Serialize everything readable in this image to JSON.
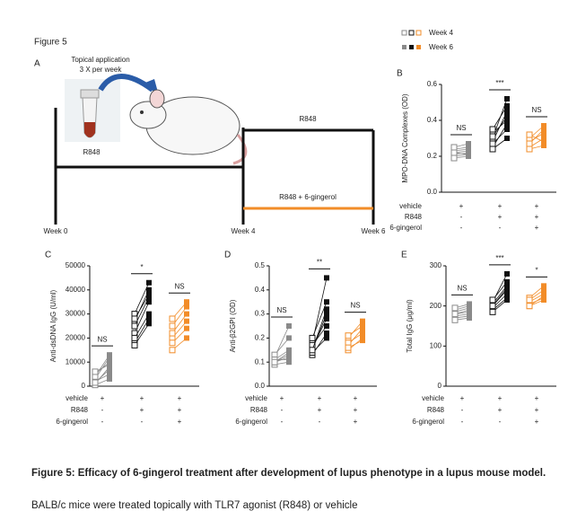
{
  "figure_label": "Figure 5",
  "panel_a": {
    "letter": "A",
    "application": "Topical application",
    "frequency": "3 X per week",
    "tube_label": "R848",
    "arm_1": "R848",
    "arm_2": "R848 + 6-gingerol",
    "week_start": "Week 0",
    "week_mid": "Week 4",
    "week_end": "Week 6"
  },
  "legend": {
    "week4": "Week 4",
    "week6": "Week 6"
  },
  "chart_data": [
    {
      "type": "paired-dot",
      "letter": "B",
      "ylabel": "MPO-DNA Complexes (OD)",
      "ylim": [
        0,
        0.6
      ],
      "yticks": [
        {
          "value": 0,
          "label": "0.0"
        },
        0.2,
        0.4,
        0.6
      ],
      "condition_labels": [
        "vehicle",
        "R848",
        "6-gingerol"
      ],
      "groups": [
        {
          "color": "#8a8a8a",
          "conditions": [
            "+",
            "-",
            "-"
          ],
          "significance": "NS",
          "week4": [
            0.22,
            0.2,
            0.24,
            0.21,
            0.23,
            0.25,
            0.19,
            0.22
          ],
          "week6": [
            0.23,
            0.21,
            0.25,
            0.22,
            0.24,
            0.27,
            0.2,
            0.21
          ]
        },
        {
          "color": "#111111",
          "conditions": [
            "+",
            "+",
            "-"
          ],
          "significance": "***",
          "week4": [
            0.25,
            0.28,
            0.3,
            0.33,
            0.24,
            0.35,
            0.27,
            0.31
          ],
          "week6": [
            0.38,
            0.45,
            0.52,
            0.4,
            0.3,
            0.48,
            0.35,
            0.42
          ]
        },
        {
          "color": "#f28c28",
          "conditions": [
            "+",
            "+",
            "+"
          ],
          "significance": "NS",
          "week4": [
            0.25,
            0.28,
            0.3,
            0.32,
            0.27,
            0.24
          ],
          "week6": [
            0.3,
            0.33,
            0.37,
            0.28,
            0.35,
            0.26
          ]
        }
      ]
    },
    {
      "type": "paired-dot",
      "letter": "C",
      "ylabel": "Anti-dsDNA IgG (U/ml)",
      "ylim": [
        0,
        50000
      ],
      "yticks": [
        0,
        10000,
        20000,
        30000,
        40000,
        50000
      ],
      "condition_labels": [
        "vehicle",
        "R848",
        "6-gingerol"
      ],
      "groups": [
        {
          "color": "#8a8a8a",
          "conditions": [
            "+",
            "-",
            "-"
          ],
          "significance": "NS",
          "week4": [
            1000,
            3000,
            5000,
            2000,
            500,
            4000,
            1500,
            6000
          ],
          "week6": [
            8000,
            12000,
            10000,
            5000,
            3000,
            13000,
            7000,
            9000
          ]
        },
        {
          "color": "#111111",
          "conditions": [
            "+",
            "+",
            "-"
          ],
          "significance": "*",
          "week4": [
            18000,
            22000,
            27000,
            30000,
            20000,
            25000,
            17000,
            28000
          ],
          "week6": [
            28000,
            35000,
            40000,
            43000,
            30000,
            37000,
            26000,
            38000
          ]
        },
        {
          "color": "#f28c28",
          "conditions": [
            "+",
            "+",
            "+"
          ],
          "significance": "NS",
          "week4": [
            15000,
            20000,
            25000,
            28000,
            18000,
            22000
          ],
          "week6": [
            20000,
            27000,
            33000,
            35000,
            24000,
            30000
          ]
        }
      ]
    },
    {
      "type": "paired-dot",
      "letter": "D",
      "ylabel": "Anti-β2GPI (OD)",
      "ylim": [
        0,
        0.5
      ],
      "yticks": [
        {
          "value": 0,
          "label": "0.0"
        },
        0.1,
        0.2,
        0.3,
        0.4,
        0.5
      ],
      "condition_labels": [
        "vehicle",
        "R848",
        "6-gingerol"
      ],
      "groups": [
        {
          "color": "#8a8a8a",
          "conditions": [
            "+",
            "-",
            "-"
          ],
          "significance": "NS",
          "week4": [
            0.1,
            0.11,
            0.12,
            0.09,
            0.1,
            0.13,
            0.11,
            0.1
          ],
          "week6": [
            0.12,
            0.15,
            0.25,
            0.1,
            0.13,
            0.2,
            0.11,
            0.14
          ]
        },
        {
          "color": "#111111",
          "conditions": [
            "+",
            "+",
            "-"
          ],
          "significance": "**",
          "week4": [
            0.13,
            0.15,
            0.18,
            0.16,
            0.14,
            0.2,
            0.17,
            0.15
          ],
          "week6": [
            0.22,
            0.3,
            0.45,
            0.28,
            0.2,
            0.35,
            0.25,
            0.32
          ]
        },
        {
          "color": "#f28c28",
          "conditions": [
            "+",
            "+",
            "+"
          ],
          "significance": "NS",
          "week4": [
            0.15,
            0.17,
            0.2,
            0.18,
            0.16,
            0.21
          ],
          "week6": [
            0.2,
            0.24,
            0.27,
            0.22,
            0.19,
            0.25
          ]
        }
      ]
    },
    {
      "type": "paired-dot",
      "letter": "E",
      "ylabel": "Total IgG (μg/ml)",
      "ylim": [
        0,
        300
      ],
      "yticks": [
        0,
        100,
        200,
        300
      ],
      "condition_labels": [
        "vehicle",
        "R848",
        "6-gingerol"
      ],
      "groups": [
        {
          "color": "#8a8a8a",
          "conditions": [
            "+",
            "-",
            "-"
          ],
          "significance": "NS",
          "week4": [
            170,
            180,
            190,
            175,
            185,
            165,
            195,
            180
          ],
          "week6": [
            175,
            190,
            200,
            180,
            195,
            170,
            205,
            185
          ]
        },
        {
          "color": "#111111",
          "conditions": [
            "+",
            "+",
            "-"
          ],
          "significance": "***",
          "week4": [
            190,
            200,
            210,
            195,
            205,
            215,
            185,
            200
          ],
          "week6": [
            220,
            240,
            280,
            230,
            250,
            260,
            215,
            245
          ]
        },
        {
          "color": "#f28c28",
          "conditions": [
            "+",
            "+",
            "+"
          ],
          "significance": "*",
          "week4": [
            200,
            210,
            220,
            205,
            215,
            200
          ],
          "week6": [
            215,
            230,
            250,
            220,
            240,
            225
          ]
        }
      ]
    }
  ],
  "caption": {
    "bold": "Figure 5: Efficacy of 6-gingerol treatment after development of lupus phenotype in a lupus mouse model.",
    "text": "BALB/c mice were treated topically with TLR7 agonist (R848) or vehicle"
  }
}
